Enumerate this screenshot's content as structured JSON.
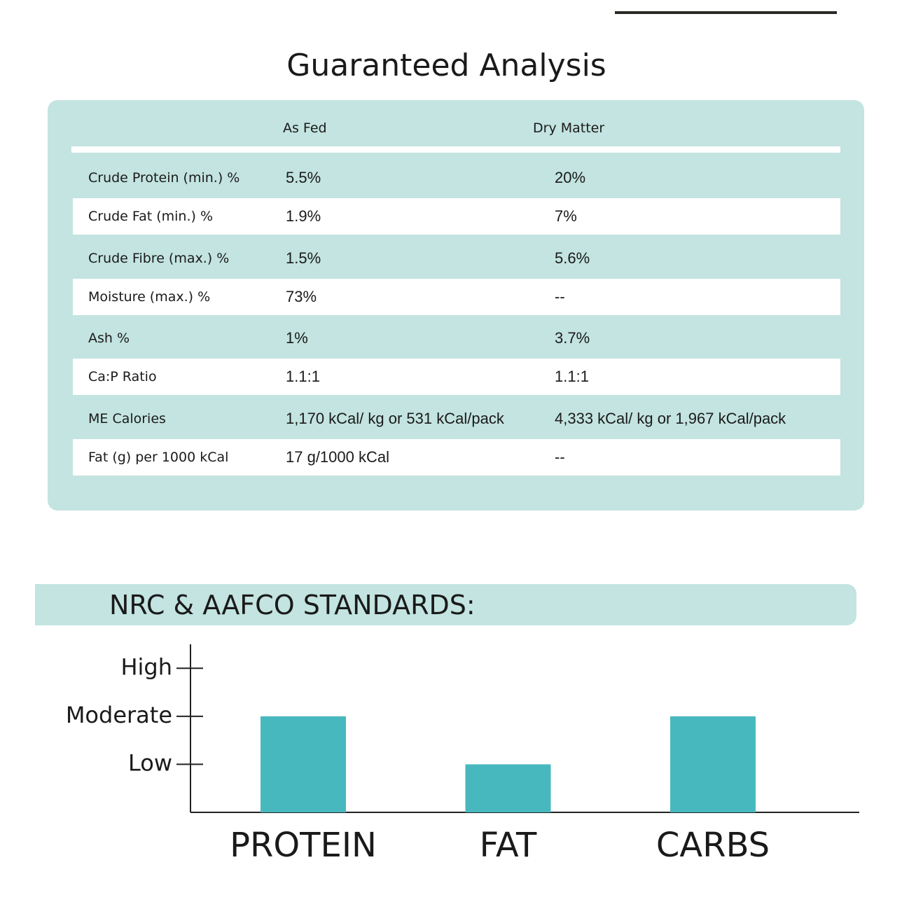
{
  "title": "Guaranteed Analysis",
  "table": {
    "columns": [
      "As Fed",
      "Dry Matter"
    ],
    "rows": [
      [
        "Crude Protein (min.) %",
        "5.5%",
        "20%"
      ],
      [
        "Crude Fat (min.) %",
        "1.9%",
        "7%"
      ],
      [
        "Crude Fibre (max.) %",
        "1.5%",
        "5.6%"
      ],
      [
        "Moisture (max.) %",
        "73%",
        "--"
      ],
      [
        "Ash %",
        "1%",
        "3.7%"
      ],
      [
        "Ca:P Ratio",
        "1.1:1",
        "1.1:1"
      ],
      [
        "ME Calories",
        "1,170 kCal/ kg or 531 kCal/pack",
        "4,333 kCal/ kg or 1,967 kCal/pack"
      ],
      [
        "Fat (g) per 1000 kCal",
        "17 g/1000 kCal",
        "--"
      ]
    ]
  },
  "chart_data": {
    "type": "bar",
    "title": "NRC & AAFCO STANDARDS:",
    "categories": [
      "PROTEIN",
      "FAT",
      "CARBS"
    ],
    "values": [
      2,
      1,
      2
    ],
    "color": "#48b8bf",
    "ylim": [
      0,
      3.5
    ],
    "yticks": [
      {
        "value": 1,
        "label": "Low"
      },
      {
        "value": 2,
        "label": "Moderate"
      },
      {
        "value": 3,
        "label": "High"
      }
    ]
  }
}
